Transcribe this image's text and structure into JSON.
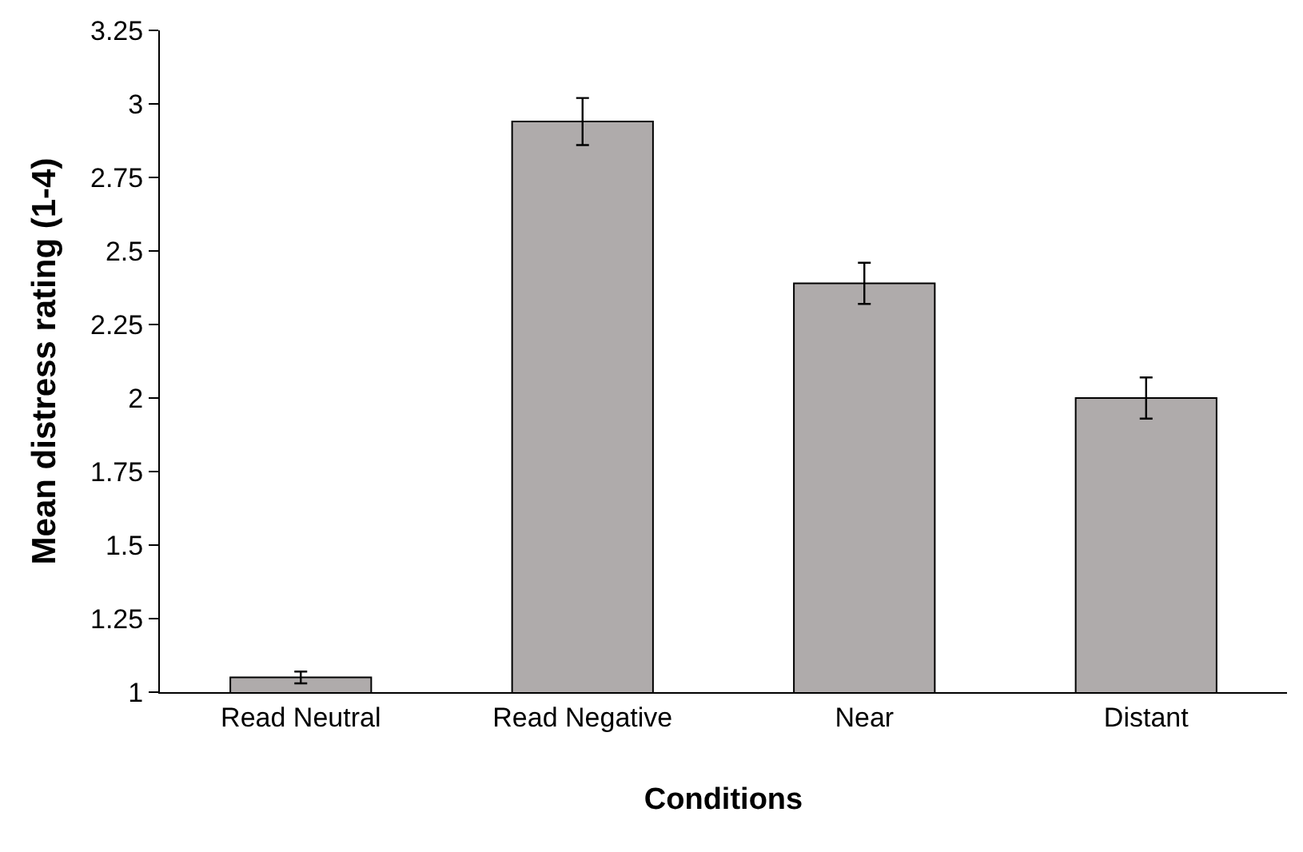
{
  "chart_data": {
    "type": "bar",
    "xlabel": "Conditions",
    "ylabel": "Mean distress rating (1-4)",
    "categories": [
      "Read Neutral",
      "Read Negative",
      "Near",
      "Distant"
    ],
    "values": [
      1.05,
      2.94,
      2.39,
      2.0
    ],
    "errors": [
      0.02,
      0.08,
      0.07,
      0.07
    ],
    "color": "#afabab",
    "ylim": [
      1,
      3.25
    ],
    "yticks": [
      1,
      1.25,
      1.5,
      1.75,
      2,
      2.25,
      2.5,
      2.75,
      3,
      3.25
    ],
    "grid": false,
    "legend": false
  }
}
